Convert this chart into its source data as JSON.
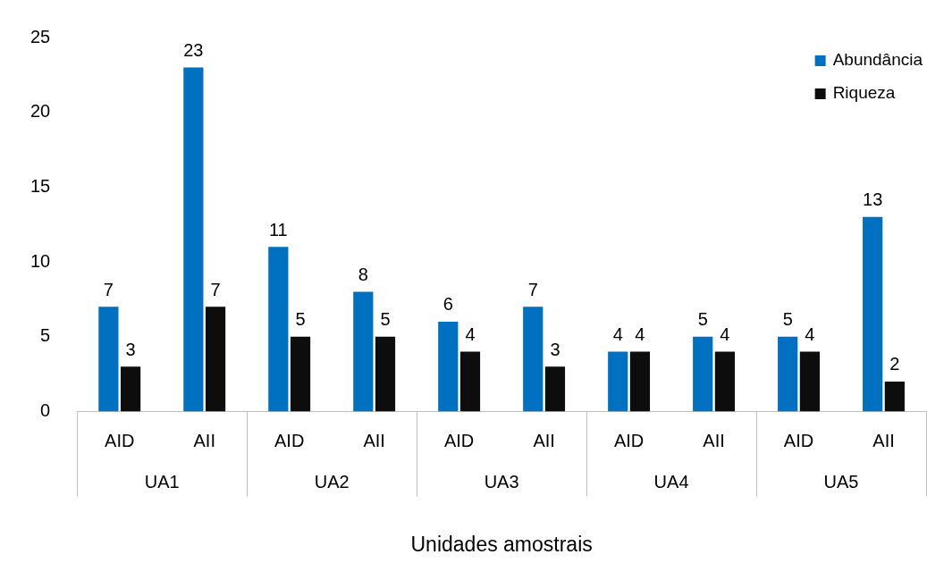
{
  "chart_data": {
    "type": "bar",
    "xlabel": "Unidades amostrais",
    "categories": [
      "AID",
      "AII",
      "AID",
      "AII",
      "AID",
      "AII",
      "AID",
      "AII",
      "AID",
      "AII"
    ],
    "series": [
      {
        "name": "Abundância",
        "color": "#0070c0",
        "values": [
          7,
          23,
          11,
          8,
          6,
          7,
          4,
          5,
          5,
          13
        ]
      },
      {
        "name": "Riqueza",
        "color": "#0d0d0d",
        "values": [
          3,
          7,
          5,
          5,
          4,
          3,
          4,
          4,
          4,
          2
        ]
      }
    ],
    "annotations": [
      "UA1",
      "UA2",
      "UA3",
      "UA4",
      "UA5"
    ],
    "ylim": [
      0,
      25
    ],
    "yticks": [
      0,
      5,
      10,
      15,
      20,
      25
    ],
    "grid": false,
    "legend": "top right",
    "data_labels": true
  }
}
